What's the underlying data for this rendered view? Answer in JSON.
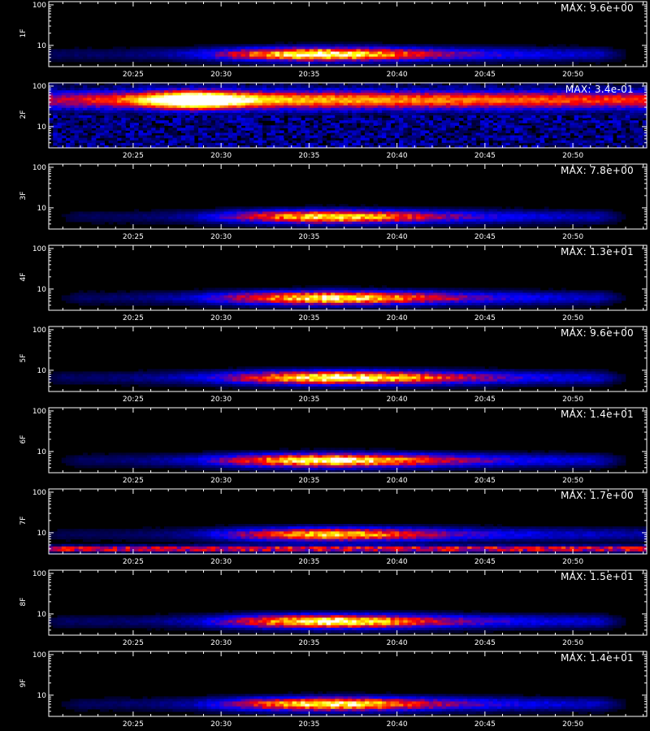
{
  "chart_data": {
    "type": "heatmap",
    "x_tick_labels": [
      "20:25",
      "20:30",
      "20:35",
      "20:40",
      "20:45",
      "20:50"
    ],
    "x_tick_minutes": [
      25,
      30,
      35,
      40,
      45,
      50
    ],
    "x_range_minutes": [
      20.2,
      54.2
    ],
    "y_scale": "log",
    "y_tick_labels": [
      "100",
      "10"
    ],
    "y_range": [
      3,
      120
    ],
    "xlabel": "",
    "colormap": [
      "#000000",
      "#0000ff",
      "#ff0000",
      "#ffff00",
      "#ffffff"
    ],
    "panels": [
      {
        "name": "1F",
        "max_label": "MAX: 9.6e+00",
        "band_y": 6,
        "start": 20.5,
        "end": 51.5,
        "peak": 35.5,
        "peak_width": 6,
        "strength": 1.0
      },
      {
        "name": "2F",
        "max_label": "MAX: 3.4e-01",
        "band_y": 45,
        "start": 20.2,
        "end": 54.2,
        "peak": 28.5,
        "peak_width": 2.6,
        "strength": 1.0,
        "noisy": true
      },
      {
        "name": "3F",
        "max_label": "MAX: 7.8e+00",
        "band_y": 6,
        "start": 22,
        "end": 51.5,
        "peak": 36,
        "peak_width": 6,
        "strength": 0.9
      },
      {
        "name": "4F",
        "max_label": "MAX: 1.3e+01",
        "band_y": 6,
        "start": 22,
        "end": 51.5,
        "peak": 36,
        "peak_width": 6.5,
        "strength": 0.95
      },
      {
        "name": "5F",
        "max_label": "MAX: 9.6e+00",
        "band_y": 6.5,
        "start": 21,
        "end": 51.5,
        "peak": 36.5,
        "peak_width": 7,
        "strength": 1.0
      },
      {
        "name": "6F",
        "max_label": "MAX: 1.4e+01",
        "band_y": 6,
        "start": 22,
        "end": 51.5,
        "peak": 36,
        "peak_width": 6.5,
        "strength": 1.0
      },
      {
        "name": "7F",
        "max_label": "MAX: 1.7e+00",
        "band_y": 9,
        "start": 21,
        "end": 54.2,
        "peak": 36,
        "peak_width": 6,
        "strength": 0.85,
        "lower_band": 4
      },
      {
        "name": "8F",
        "max_label": "MAX: 1.5e+01",
        "band_y": 6.5,
        "start": 21,
        "end": 51.5,
        "peak": 36,
        "peak_width": 6,
        "strength": 1.0
      },
      {
        "name": "9F",
        "max_label": "MAX: 1.4e+01",
        "band_y": 6,
        "start": 22,
        "end": 51.5,
        "peak": 36,
        "peak_width": 6,
        "strength": 0.95
      }
    ]
  }
}
